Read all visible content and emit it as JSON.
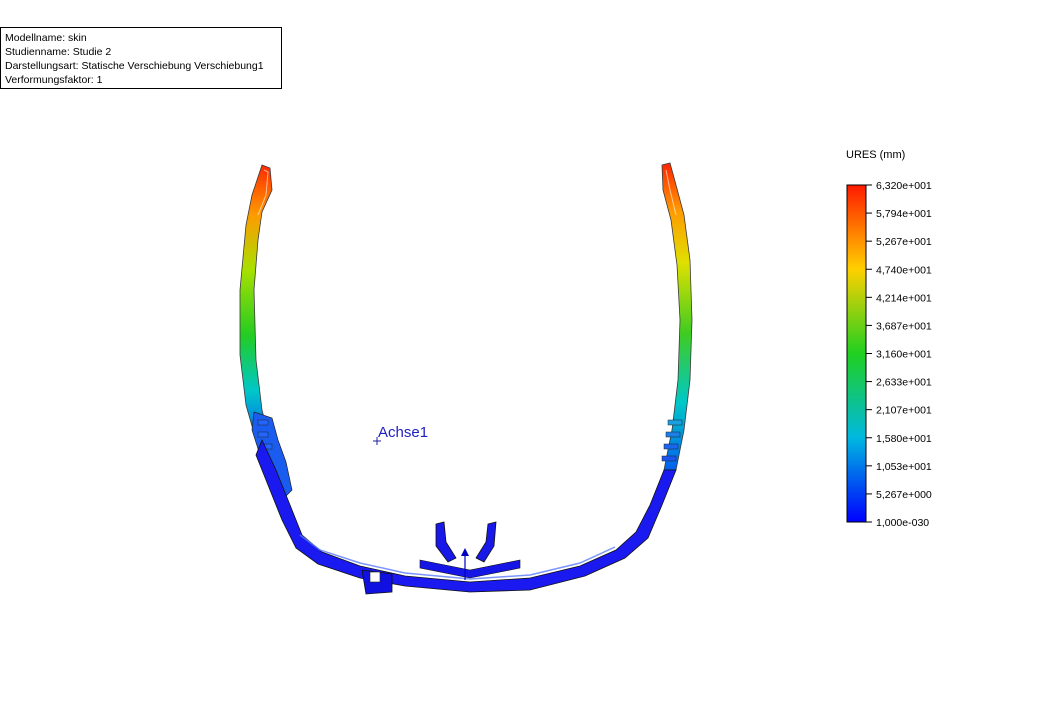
{
  "info": {
    "model_name": "Modellname: skin",
    "study_name": "Studienname: Studie 2",
    "plot_type": "Darstellungsart: Statische Verschiebung Verschiebung1",
    "deformation_scale": "Verformungsfaktor: 1"
  },
  "axis_label": "Achse1",
  "legend": {
    "title": "URES (mm)",
    "labels": [
      "6,320e+001",
      "5,794e+001",
      "5,267e+001",
      "4,740e+001",
      "4,214e+001",
      "3,687e+001",
      "3,160e+001",
      "2,633e+001",
      "2,107e+001",
      "1,580e+001",
      "1,053e+001",
      "5,267e+000",
      "1,000e-030"
    ],
    "colors": [
      "#ff1a00",
      "#ff6a00",
      "#ffb400",
      "#f0e600",
      "#b4e600",
      "#5ad200",
      "#14c814",
      "#00d278",
      "#00d2be",
      "#00aae6",
      "#0064f0",
      "#0032f0",
      "#0000ff"
    ]
  }
}
